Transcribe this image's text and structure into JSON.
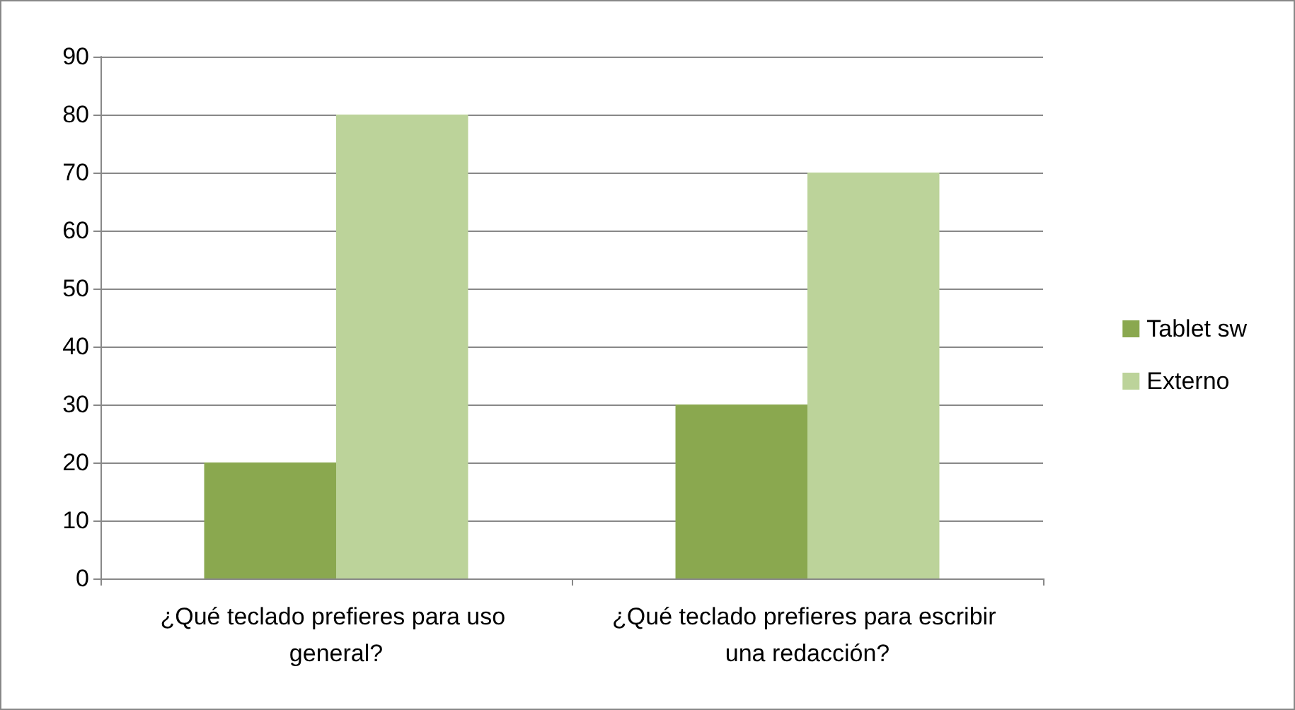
{
  "chart_data": {
    "type": "bar",
    "categories": [
      "¿Qué teclado prefieres para uso general?",
      "¿Qué teclado prefieres para escribir una redacción?"
    ],
    "series": [
      {
        "name": "Tablet sw",
        "color": "#8aa84f",
        "values": [
          20,
          30
        ]
      },
      {
        "name": "Externo",
        "color": "#bcd39a",
        "values": [
          80,
          70
        ]
      }
    ],
    "ylim": [
      0,
      90
    ],
    "yticks": [
      0,
      10,
      20,
      30,
      40,
      50,
      60,
      70,
      80,
      90
    ],
    "grid": "y",
    "legend": "right"
  }
}
